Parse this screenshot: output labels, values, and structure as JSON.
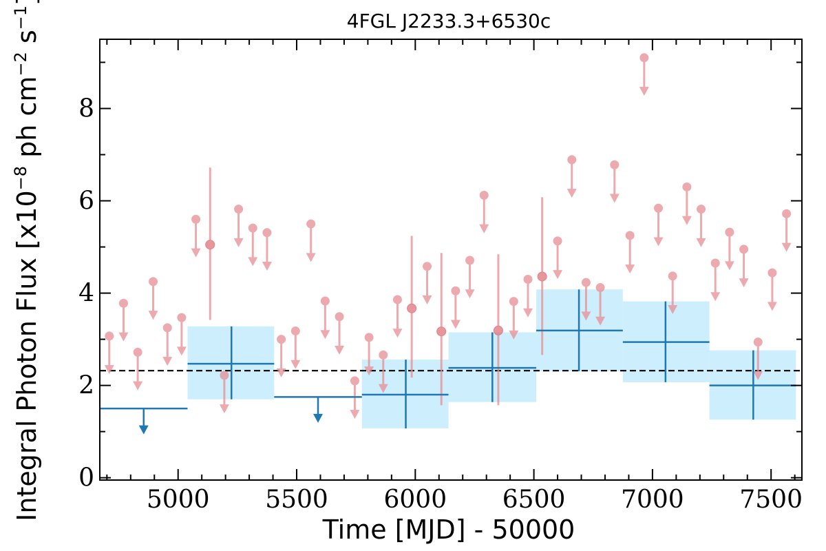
{
  "chart_data": {
    "type": "scatter",
    "title": "4FGL J2233.3+6530c",
    "xlabel": "Time [MJD] - 50000",
    "ylabel_parts": {
      "prefix": "Integral Photon Flux [x10",
      "exp1": "−8",
      "mid": " ph cm",
      "exp2": "−2",
      "mid2": " s",
      "exp3": "−1",
      "suffix": "]"
    },
    "xlim": [
      4670,
      7630
    ],
    "ylim": [
      -0.05,
      9.5
    ],
    "xticks": [
      5000,
      5500,
      6000,
      6500,
      7000,
      7500
    ],
    "yticks": [
      0,
      2,
      4,
      6,
      8
    ],
    "colors": {
      "fine": "#e88e93",
      "coarse": "#1f77b4",
      "band": "#cdeefc",
      "mean": "#000000"
    },
    "mean_flux": 2.32,
    "fine_upper_limits": [
      {
        "x": 4710,
        "y": 3.07
      },
      {
        "x": 4770,
        "y": 3.78
      },
      {
        "x": 4830,
        "y": 2.72
      },
      {
        "x": 4895,
        "y": 4.25
      },
      {
        "x": 4955,
        "y": 3.25
      },
      {
        "x": 5015,
        "y": 3.47
      },
      {
        "x": 5075,
        "y": 5.6
      },
      {
        "x": 5195,
        "y": 2.22
      },
      {
        "x": 5255,
        "y": 5.82
      },
      {
        "x": 5315,
        "y": 5.41
      },
      {
        "x": 5375,
        "y": 5.31
      },
      {
        "x": 5435,
        "y": 3.0
      },
      {
        "x": 5495,
        "y": 3.18
      },
      {
        "x": 5560,
        "y": 5.5
      },
      {
        "x": 5620,
        "y": 3.83
      },
      {
        "x": 5680,
        "y": 3.49
      },
      {
        "x": 5745,
        "y": 2.1
      },
      {
        "x": 5805,
        "y": 3.04
      },
      {
        "x": 5865,
        "y": 2.66
      },
      {
        "x": 5925,
        "y": 3.86
      },
      {
        "x": 6050,
        "y": 4.58
      },
      {
        "x": 6170,
        "y": 4.05
      },
      {
        "x": 6230,
        "y": 4.71
      },
      {
        "x": 6290,
        "y": 6.12
      },
      {
        "x": 6415,
        "y": 3.82
      },
      {
        "x": 6475,
        "y": 4.3
      },
      {
        "x": 6600,
        "y": 5.13
      },
      {
        "x": 6660,
        "y": 6.89
      },
      {
        "x": 6720,
        "y": 4.23
      },
      {
        "x": 6780,
        "y": 4.12
      },
      {
        "x": 6840,
        "y": 6.78
      },
      {
        "x": 6905,
        "y": 5.25
      },
      {
        "x": 6965,
        "y": 9.1
      },
      {
        "x": 7025,
        "y": 5.84
      },
      {
        "x": 7085,
        "y": 4.37
      },
      {
        "x": 7145,
        "y": 6.3
      },
      {
        "x": 7205,
        "y": 5.82
      },
      {
        "x": 7265,
        "y": 4.65
      },
      {
        "x": 7325,
        "y": 5.32
      },
      {
        "x": 7385,
        "y": 4.95
      },
      {
        "x": 7445,
        "y": 2.94
      },
      {
        "x": 7505,
        "y": 4.44
      },
      {
        "x": 7565,
        "y": 5.72
      }
    ],
    "fine_detections": [
      {
        "x": 5135,
        "y": 5.05,
        "ylo": 3.42,
        "yhi": 6.72
      },
      {
        "x": 5985,
        "y": 3.67,
        "ylo": 2.17,
        "yhi": 5.24
      },
      {
        "x": 6110,
        "y": 3.17,
        "ylo": 1.57,
        "yhi": 4.87
      },
      {
        "x": 6350,
        "y": 3.19,
        "ylo": 1.57,
        "yhi": 4.84
      },
      {
        "x": 6535,
        "y": 4.36,
        "ylo": 2.66,
        "yhi": 6.08
      }
    ],
    "coarse_upper_limits": [
      {
        "x": 4855,
        "xmin": 4670,
        "xmax": 5040,
        "y": 1.5
      },
      {
        "x": 5590,
        "xmin": 5405,
        "xmax": 5775,
        "y": 1.75
      }
    ],
    "coarse_detections": [
      {
        "x": 5225,
        "xmin": 5040,
        "xmax": 5405,
        "y": 2.47,
        "ylo": 1.7,
        "yhi": 3.28
      },
      {
        "x": 5960,
        "xmin": 5775,
        "xmax": 6140,
        "y": 1.8,
        "ylo": 1.07,
        "yhi": 2.56
      },
      {
        "x": 6325,
        "xmin": 6140,
        "xmax": 6510,
        "y": 2.38,
        "ylo": 1.64,
        "yhi": 3.15
      },
      {
        "x": 6690,
        "xmin": 6510,
        "xmax": 6875,
        "y": 3.19,
        "ylo": 2.31,
        "yhi": 4.08
      },
      {
        "x": 7055,
        "xmin": 6875,
        "xmax": 7240,
        "y": 2.94,
        "ylo": 2.07,
        "yhi": 3.82
      },
      {
        "x": 7425,
        "xmin": 7240,
        "xmax": 7605,
        "y": 2.0,
        "ylo": 1.26,
        "yhi": 2.76
      }
    ]
  }
}
